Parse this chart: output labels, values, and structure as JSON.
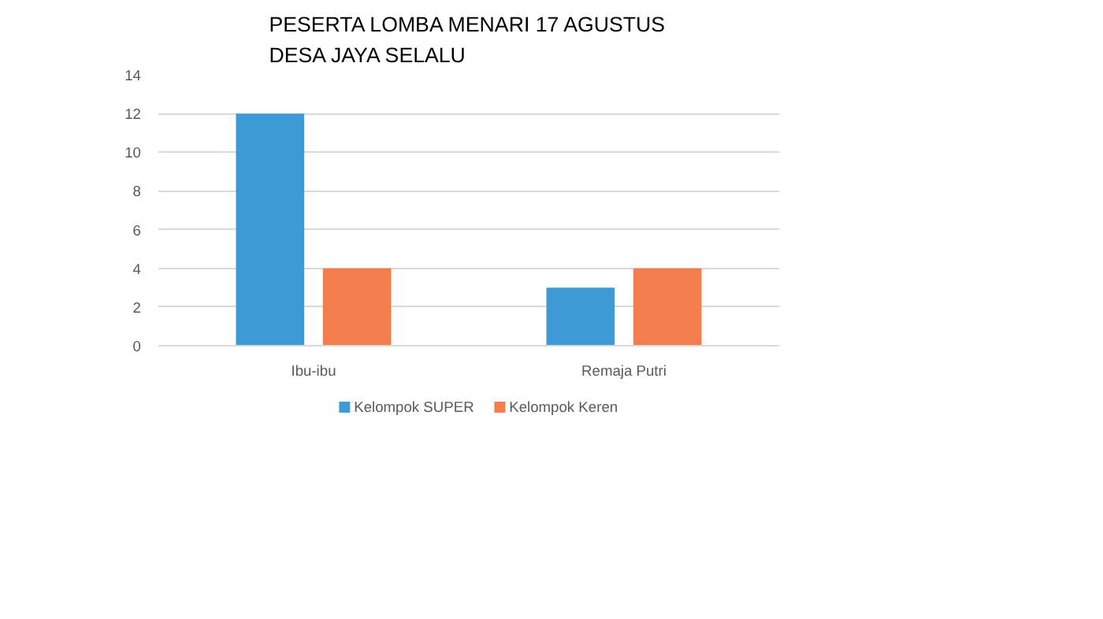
{
  "chart_data": {
    "type": "bar",
    "title": "PESERTA LOMBA MENARI 17 AGUSTUS\nDESA JAYA SELALU",
    "categories": [
      "Ibu-ibu",
      "Remaja Putri"
    ],
    "series": [
      {
        "name": "Kelompok SUPER",
        "color": "#3e9ad5",
        "values": [
          12,
          3
        ]
      },
      {
        "name": "Kelompok Keren",
        "color": "#f47d4e",
        "values": [
          4,
          4
        ]
      }
    ],
    "ylim": [
      0,
      14
    ],
    "yticks": [
      0,
      2,
      4,
      6,
      8,
      10,
      12,
      14
    ],
    "grid": "y",
    "legend": "bottom"
  }
}
